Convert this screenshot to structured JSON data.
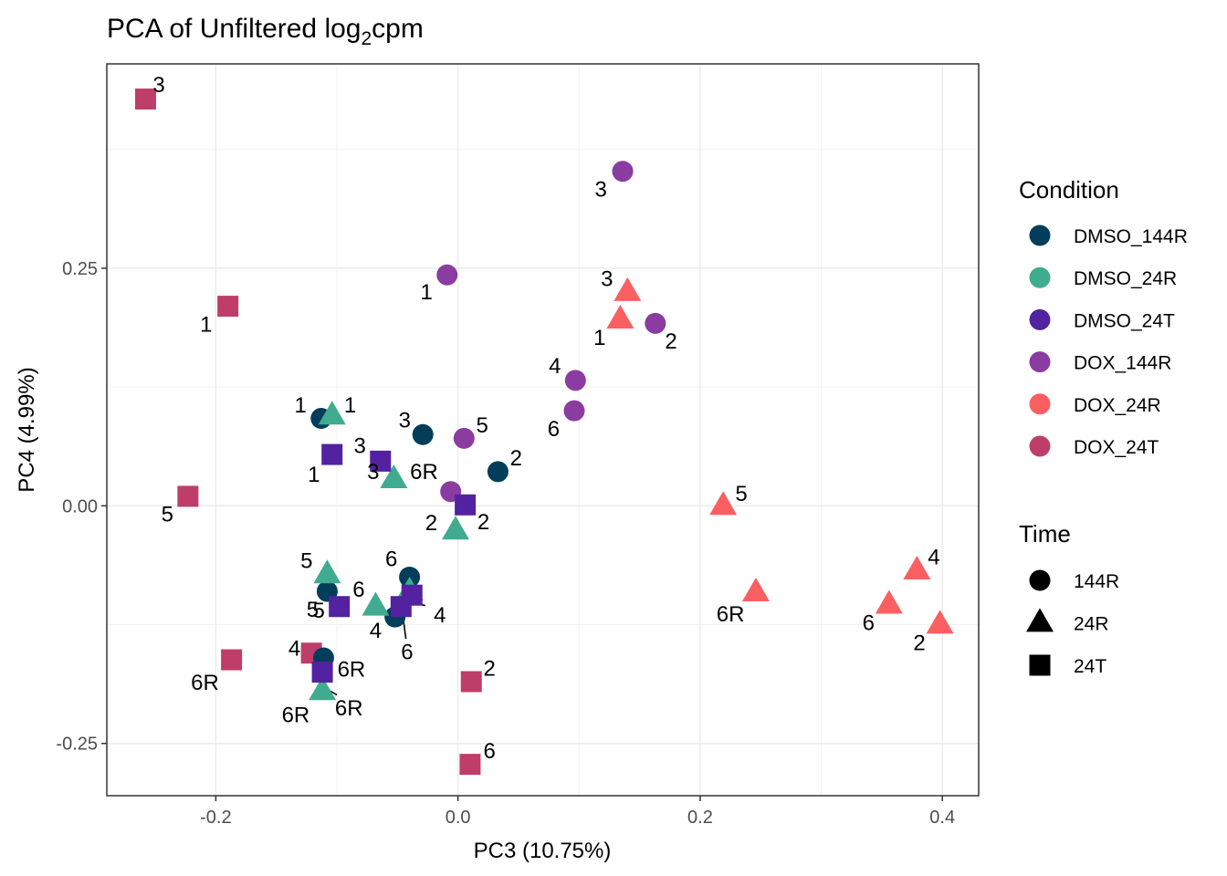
{
  "chart_data": {
    "type": "scatter",
    "title": "PCA of Unfiltered log",
    "title_subscript": "2",
    "title_suffix": "cpm",
    "xlabel": "PC3 (10.75%)",
    "ylabel": "PC4 (4.99%)",
    "xlim": [
      -0.29,
      0.43
    ],
    "ylim": [
      -0.305,
      0.465
    ],
    "x_ticks": [
      -0.2,
      0.0,
      0.2,
      0.4
    ],
    "x_tick_labels": [
      "-0.2",
      "0.0",
      "0.2",
      "0.4"
    ],
    "y_ticks": [
      -0.25,
      0.0,
      0.25
    ],
    "y_tick_labels": [
      "-0.25",
      "0.00",
      "0.25"
    ],
    "grid": true,
    "legend_position": "right",
    "condition_legend": {
      "title": "Condition",
      "items": [
        {
          "name": "DMSO_144R",
          "color": "#023e5a"
        },
        {
          "name": "DMSO_24R",
          "color": "#41ab8f"
        },
        {
          "name": "DMSO_24T",
          "color": "#5222a1"
        },
        {
          "name": "DOX_144R",
          "color": "#8a3ca1"
        },
        {
          "name": "DOX_24R",
          "color": "#fb5f62"
        },
        {
          "name": "DOX_24T",
          "color": "#bf3d69"
        }
      ]
    },
    "time_legend": {
      "title": "Time",
      "items": [
        {
          "name": "144R",
          "shape": "circle"
        },
        {
          "name": "24R",
          "shape": "triangle"
        },
        {
          "name": "24T",
          "shape": "square"
        }
      ]
    },
    "points": [
      {
        "condition": "DOX_24T",
        "time": "24T",
        "x": -0.258,
        "y": 0.428,
        "label": "3",
        "lx": -0.247,
        "ly": 0.443
      },
      {
        "condition": "DOX_24T",
        "time": "24T",
        "x": -0.19,
        "y": 0.21,
        "label": "1",
        "lx": -0.208,
        "ly": 0.191
      },
      {
        "condition": "DOX_24T",
        "time": "24T",
        "x": -0.223,
        "y": 0.01,
        "label": "5",
        "lx": -0.24,
        "ly": -0.009
      },
      {
        "condition": "DOX_24T",
        "time": "24T",
        "x": -0.187,
        "y": -0.162,
        "label": "6R",
        "lx": -0.209,
        "ly": -0.186
      },
      {
        "condition": "DOX_24T",
        "time": "24T",
        "x": -0.121,
        "y": -0.155,
        "label": "4",
        "lx": -0.135,
        "ly": -0.15
      },
      {
        "condition": "DOX_24T",
        "time": "24T",
        "x": 0.011,
        "y": -0.185,
        "label": "2",
        "lx": 0.026,
        "ly": -0.171
      },
      {
        "condition": "DOX_24T",
        "time": "24T",
        "x": 0.01,
        "y": -0.272,
        "label": "6",
        "lx": 0.026,
        "ly": -0.258
      },
      {
        "condition": "DOX_144R",
        "time": "144R",
        "x": 0.136,
        "y": 0.352,
        "label": "3",
        "lx": 0.118,
        "ly": 0.333
      },
      {
        "condition": "DOX_144R",
        "time": "144R",
        "x": -0.009,
        "y": 0.243,
        "label": "1",
        "lx": -0.026,
        "ly": 0.225
      },
      {
        "condition": "DOX_144R",
        "time": "144R",
        "x": 0.163,
        "y": 0.192,
        "label": "2",
        "lx": 0.176,
        "ly": 0.173
      },
      {
        "condition": "DOX_144R",
        "time": "144R",
        "x": 0.097,
        "y": 0.132,
        "label": "4",
        "lx": 0.08,
        "ly": 0.147
      },
      {
        "condition": "DOX_144R",
        "time": "144R",
        "x": 0.096,
        "y": 0.1,
        "label": "6",
        "lx": 0.079,
        "ly": 0.081
      },
      {
        "condition": "DOX_144R",
        "time": "144R",
        "x": 0.005,
        "y": 0.071,
        "label": "5",
        "lx": 0.02,
        "ly": 0.085
      },
      {
        "condition": "DOX_144R",
        "time": "144R",
        "x": -0.006,
        "y": 0.015,
        "label": "",
        "lx": 0,
        "ly": 0
      },
      {
        "condition": "DOX_24R",
        "time": "24R",
        "x": 0.14,
        "y": 0.225,
        "label": "3",
        "lx": 0.123,
        "ly": 0.239
      },
      {
        "condition": "DOX_24R",
        "time": "24R",
        "x": 0.134,
        "y": 0.196,
        "label": "1",
        "lx": 0.117,
        "ly": 0.177
      },
      {
        "condition": "DOX_24R",
        "time": "24R",
        "x": 0.219,
        "y": 0.0,
        "label": "5",
        "lx": 0.234,
        "ly": 0.013
      },
      {
        "condition": "DOX_24R",
        "time": "24R",
        "x": 0.246,
        "y": -0.091,
        "label": "6R",
        "lx": 0.225,
        "ly": -0.114
      },
      {
        "condition": "DOX_24R",
        "time": "24R",
        "x": 0.379,
        "y": -0.068,
        "label": "4",
        "lx": 0.393,
        "ly": -0.054
      },
      {
        "condition": "DOX_24R",
        "time": "24R",
        "x": 0.356,
        "y": -0.104,
        "label": "6",
        "lx": 0.339,
        "ly": -0.123
      },
      {
        "condition": "DOX_24R",
        "time": "24R",
        "x": 0.398,
        "y": -0.125,
        "label": "2",
        "lx": 0.381,
        "ly": -0.144
      },
      {
        "condition": "DMSO_144R",
        "time": "144R",
        "x": -0.113,
        "y": 0.092,
        "label": "1",
        "lx": -0.13,
        "ly": 0.106
      },
      {
        "condition": "DMSO_144R",
        "time": "144R",
        "x": -0.029,
        "y": 0.075,
        "label": "3",
        "lx": -0.044,
        "ly": 0.09
      },
      {
        "condition": "DMSO_144R",
        "time": "144R",
        "x": 0.033,
        "y": 0.036,
        "label": "2",
        "lx": 0.048,
        "ly": 0.05
      },
      {
        "condition": "DMSO_144R",
        "time": "144R",
        "x": -0.04,
        "y": -0.075,
        "label": "6",
        "lx": -0.055,
        "ly": -0.056
      },
      {
        "condition": "DMSO_144R",
        "time": "144R",
        "x": -0.108,
        "y": -0.09,
        "label": "6",
        "lx": -0.082,
        "ly": -0.088
      },
      {
        "condition": "DMSO_144R",
        "time": "144R",
        "x": -0.052,
        "y": -0.117,
        "label": "",
        "lx": 0,
        "ly": 0
      },
      {
        "condition": "DMSO_144R",
        "time": "144R",
        "x": -0.111,
        "y": -0.16,
        "label": "",
        "lx": 0,
        "ly": 0
      },
      {
        "condition": "DMSO_24R",
        "time": "24R",
        "x": -0.104,
        "y": 0.095,
        "label": "1",
        "lx": -0.089,
        "ly": 0.106
      },
      {
        "condition": "DMSO_24R",
        "time": "24R",
        "x": -0.053,
        "y": 0.028,
        "label": "6R",
        "lx": -0.028,
        "ly": 0.036
      },
      {
        "condition": "DMSO_24R",
        "time": "24R",
        "x": -0.002,
        "y": -0.026,
        "label": "2",
        "lx": -0.022,
        "ly": -0.018
      },
      {
        "condition": "DMSO_24R",
        "time": "24R",
        "x": -0.108,
        "y": -0.072,
        "label": "5",
        "lx": -0.125,
        "ly": -0.058
      },
      {
        "condition": "DMSO_24R",
        "time": "24R",
        "x": -0.068,
        "y": -0.106,
        "label": "4",
        "lx": -0.068,
        "ly": -0.131
      },
      {
        "condition": "DMSO_24R",
        "time": "24R",
        "x": -0.04,
        "y": -0.09,
        "label": "",
        "lx": 0,
        "ly": 0
      },
      {
        "condition": "DMSO_24R",
        "time": "24R",
        "x": -0.112,
        "y": -0.195,
        "label": "6R",
        "lx": -0.09,
        "ly": -0.213
      },
      {
        "condition": "DMSO_24T",
        "time": "24T",
        "x": -0.104,
        "y": 0.054,
        "label": "1",
        "lx": -0.119,
        "ly": 0.033
      },
      {
        "condition": "DMSO_24T",
        "time": "24T",
        "x": -0.064,
        "y": 0.047,
        "label": "3",
        "lx": -0.081,
        "ly": 0.063
      },
      {
        "condition": "DMSO_24T",
        "time": "24T",
        "x": 0.006,
        "y": 0.001,
        "label": "2",
        "lx": 0.021,
        "ly": -0.017
      },
      {
        "condition": "DMSO_24T",
        "time": "24T",
        "x": -0.098,
        "y": -0.106,
        "label": "5",
        "lx": -0.115,
        "ly": -0.11
      },
      {
        "condition": "DMSO_24T",
        "time": "24T",
        "x": -0.038,
        "y": -0.094,
        "label": "4",
        "lx": -0.015,
        "ly": -0.115
      },
      {
        "condition": "DMSO_24T",
        "time": "24T",
        "x": -0.047,
        "y": -0.106,
        "label": "",
        "lx": 0,
        "ly": 0
      },
      {
        "condition": "DMSO_24T",
        "time": "24T",
        "x": -0.112,
        "y": -0.175,
        "label": "6R",
        "lx": -0.088,
        "ly": -0.172
      }
    ],
    "extra_labels": [
      {
        "text": "3",
        "x": -0.07,
        "y": 0.036
      },
      {
        "text": "5",
        "x": -0.12,
        "y": -0.109
      },
      {
        "text": "6",
        "x": -0.042,
        "y": -0.154
      },
      {
        "text": "6R",
        "x": -0.134,
        "y": -0.22
      }
    ],
    "connectors": [
      {
        "x1": -0.046,
        "y1": -0.111,
        "x2": -0.043,
        "y2": -0.14
      },
      {
        "x1": -0.044,
        "y1": -0.099,
        "x2": -0.027,
        "y2": -0.105
      },
      {
        "x1": -0.108,
        "y1": -0.193,
        "x2": -0.1,
        "y2": -0.199
      }
    ]
  }
}
